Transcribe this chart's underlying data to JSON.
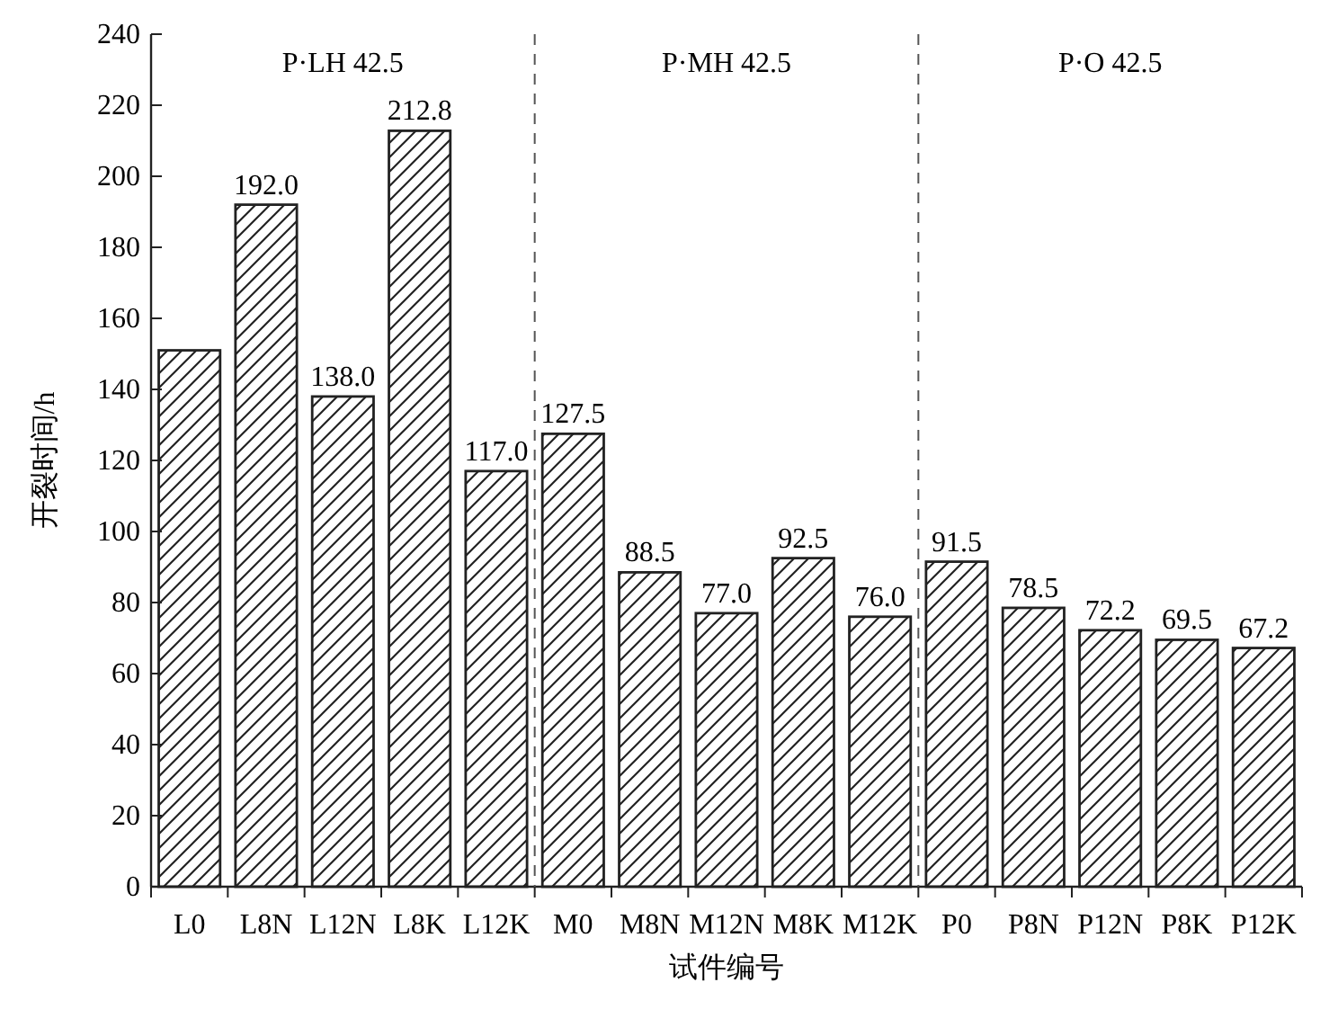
{
  "chart_data": {
    "type": "bar",
    "xlabel": "试件编号",
    "ylabel": "开裂时间/h",
    "categories": [
      "L0",
      "L8N",
      "L12N",
      "L8K",
      "L12K",
      "M0",
      "M8N",
      "M12N",
      "M8K",
      "M12K",
      "P0",
      "P8N",
      "P12N",
      "P8K",
      "P12K"
    ],
    "values": [
      151,
      192.0,
      138.0,
      212.8,
      117.0,
      127.5,
      88.5,
      77.0,
      92.5,
      76.0,
      91.5,
      78.5,
      72.2,
      69.5,
      67.2
    ],
    "value_labels": [
      null,
      "192.0",
      "138.0",
      "212.8",
      "117.0",
      "127.5",
      "88.5",
      "77.0",
      "92.5",
      "76.0",
      "91.5",
      "78.5",
      "72.2",
      "69.5",
      "67.2"
    ],
    "color": "#222222",
    "ylim": [
      0,
      240
    ],
    "yticks": [
      0,
      20,
      40,
      60,
      80,
      100,
      120,
      140,
      160,
      180,
      200,
      220,
      240
    ],
    "annotations": [
      "P·LH 42.5",
      "P·MH 42.5",
      "P·O 42.5"
    ],
    "grid": false
  }
}
